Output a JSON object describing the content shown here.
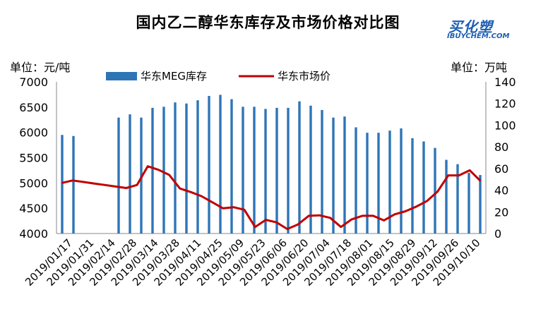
{
  "chart_data": {
    "type": "bar+line",
    "title": "国内乙二醇华东库存及市场价格对比图",
    "logo": {
      "cn": "买化塑",
      "en": "IBUYCHEM.COM"
    },
    "y_left": {
      "label": "单位：元/吨",
      "range": [
        4000,
        7000
      ],
      "ticks": [
        "4000",
        "4500",
        "5000",
        "5500",
        "6000",
        "6500",
        "7000"
      ]
    },
    "y_right": {
      "label": "单位：万吨",
      "range": [
        0,
        140
      ],
      "ticks": [
        "0",
        "20",
        "40",
        "60",
        "80",
        "100",
        "120",
        "140"
      ]
    },
    "x_tick_labels": [
      "2019/01/17",
      "2019/01/31",
      "2019/02/14",
      "2019/02/28",
      "2019/03/14",
      "2019/03/28",
      "2019/04/11",
      "2019/04/25",
      "2019/05/09",
      "2019/05/23",
      "2019/06/06",
      "2019/06/20",
      "2019/07/04",
      "2019/07/18",
      "2019/08/01",
      "2019/08/15",
      "2019/08/29",
      "2019/09/12",
      "2019/09/26",
      "2019/10/10"
    ],
    "legend": {
      "bars": "华东MEG库存",
      "line": "华东市场价"
    },
    "series": [
      {
        "name": "华东MEG库存",
        "type": "bar",
        "axis": "right",
        "color": "#2e75b6",
        "values": [
          91,
          90,
          null,
          null,
          null,
          107,
          110,
          107,
          116,
          117,
          121,
          120,
          123,
          127,
          128,
          124,
          117,
          117,
          115,
          116,
          116,
          122,
          118,
          114,
          107,
          108,
          98,
          93,
          93,
          95,
          97,
          88,
          85,
          79,
          68,
          64,
          56,
          54
        ]
      },
      {
        "name": "华东市场价",
        "type": "line",
        "axis": "left",
        "color": "#c00000",
        "values": [
          5000,
          5050,
          5020,
          4990,
          4960,
          4930,
          4900,
          4960,
          5330,
          5260,
          5160,
          4890,
          4820,
          4740,
          4620,
          4500,
          4520,
          4470,
          4130,
          4270,
          4220,
          4090,
          4180,
          4350,
          4360,
          4310,
          4130,
          4280,
          4350,
          4350,
          4260,
          4380,
          4440,
          4530,
          4640,
          4830,
          5150,
          5150,
          5250,
          5040
        ]
      }
    ]
  }
}
